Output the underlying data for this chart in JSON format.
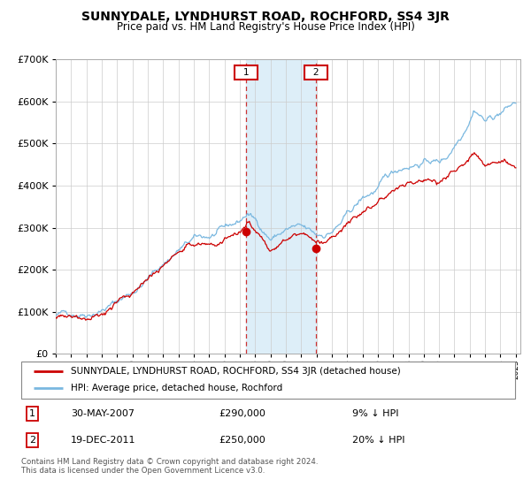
{
  "title": "SUNNYDALE, LYNDHURST ROAD, ROCHFORD, SS4 3JR",
  "subtitle": "Price paid vs. HM Land Registry's House Price Index (HPI)",
  "legend_line1": "SUNNYDALE, LYNDHURST ROAD, ROCHFORD, SS4 3JR (detached house)",
  "legend_line2": "HPI: Average price, detached house, Rochford",
  "annotation1_label": "1",
  "annotation1_date": "30-MAY-2007",
  "annotation1_price": "£290,000",
  "annotation1_hpi": "9% ↓ HPI",
  "annotation2_label": "2",
  "annotation2_date": "19-DEC-2011",
  "annotation2_price": "£250,000",
  "annotation2_hpi": "20% ↓ HPI",
  "footer": "Contains HM Land Registry data © Crown copyright and database right 2024.\nThis data is licensed under the Open Government Licence v3.0.",
  "hpi_color": "#7ab8e0",
  "price_color": "#cc0000",
  "shading_color": "#ddeef8",
  "ylim": [
    0,
    700000
  ],
  "yticks": [
    0,
    100000,
    200000,
    300000,
    400000,
    500000,
    600000,
    700000
  ],
  "sale1_year": 2007.42,
  "sale2_year": 2011.97,
  "sale1_price": 290000,
  "sale2_price": 250000,
  "bg_color": "#f0f0f0"
}
